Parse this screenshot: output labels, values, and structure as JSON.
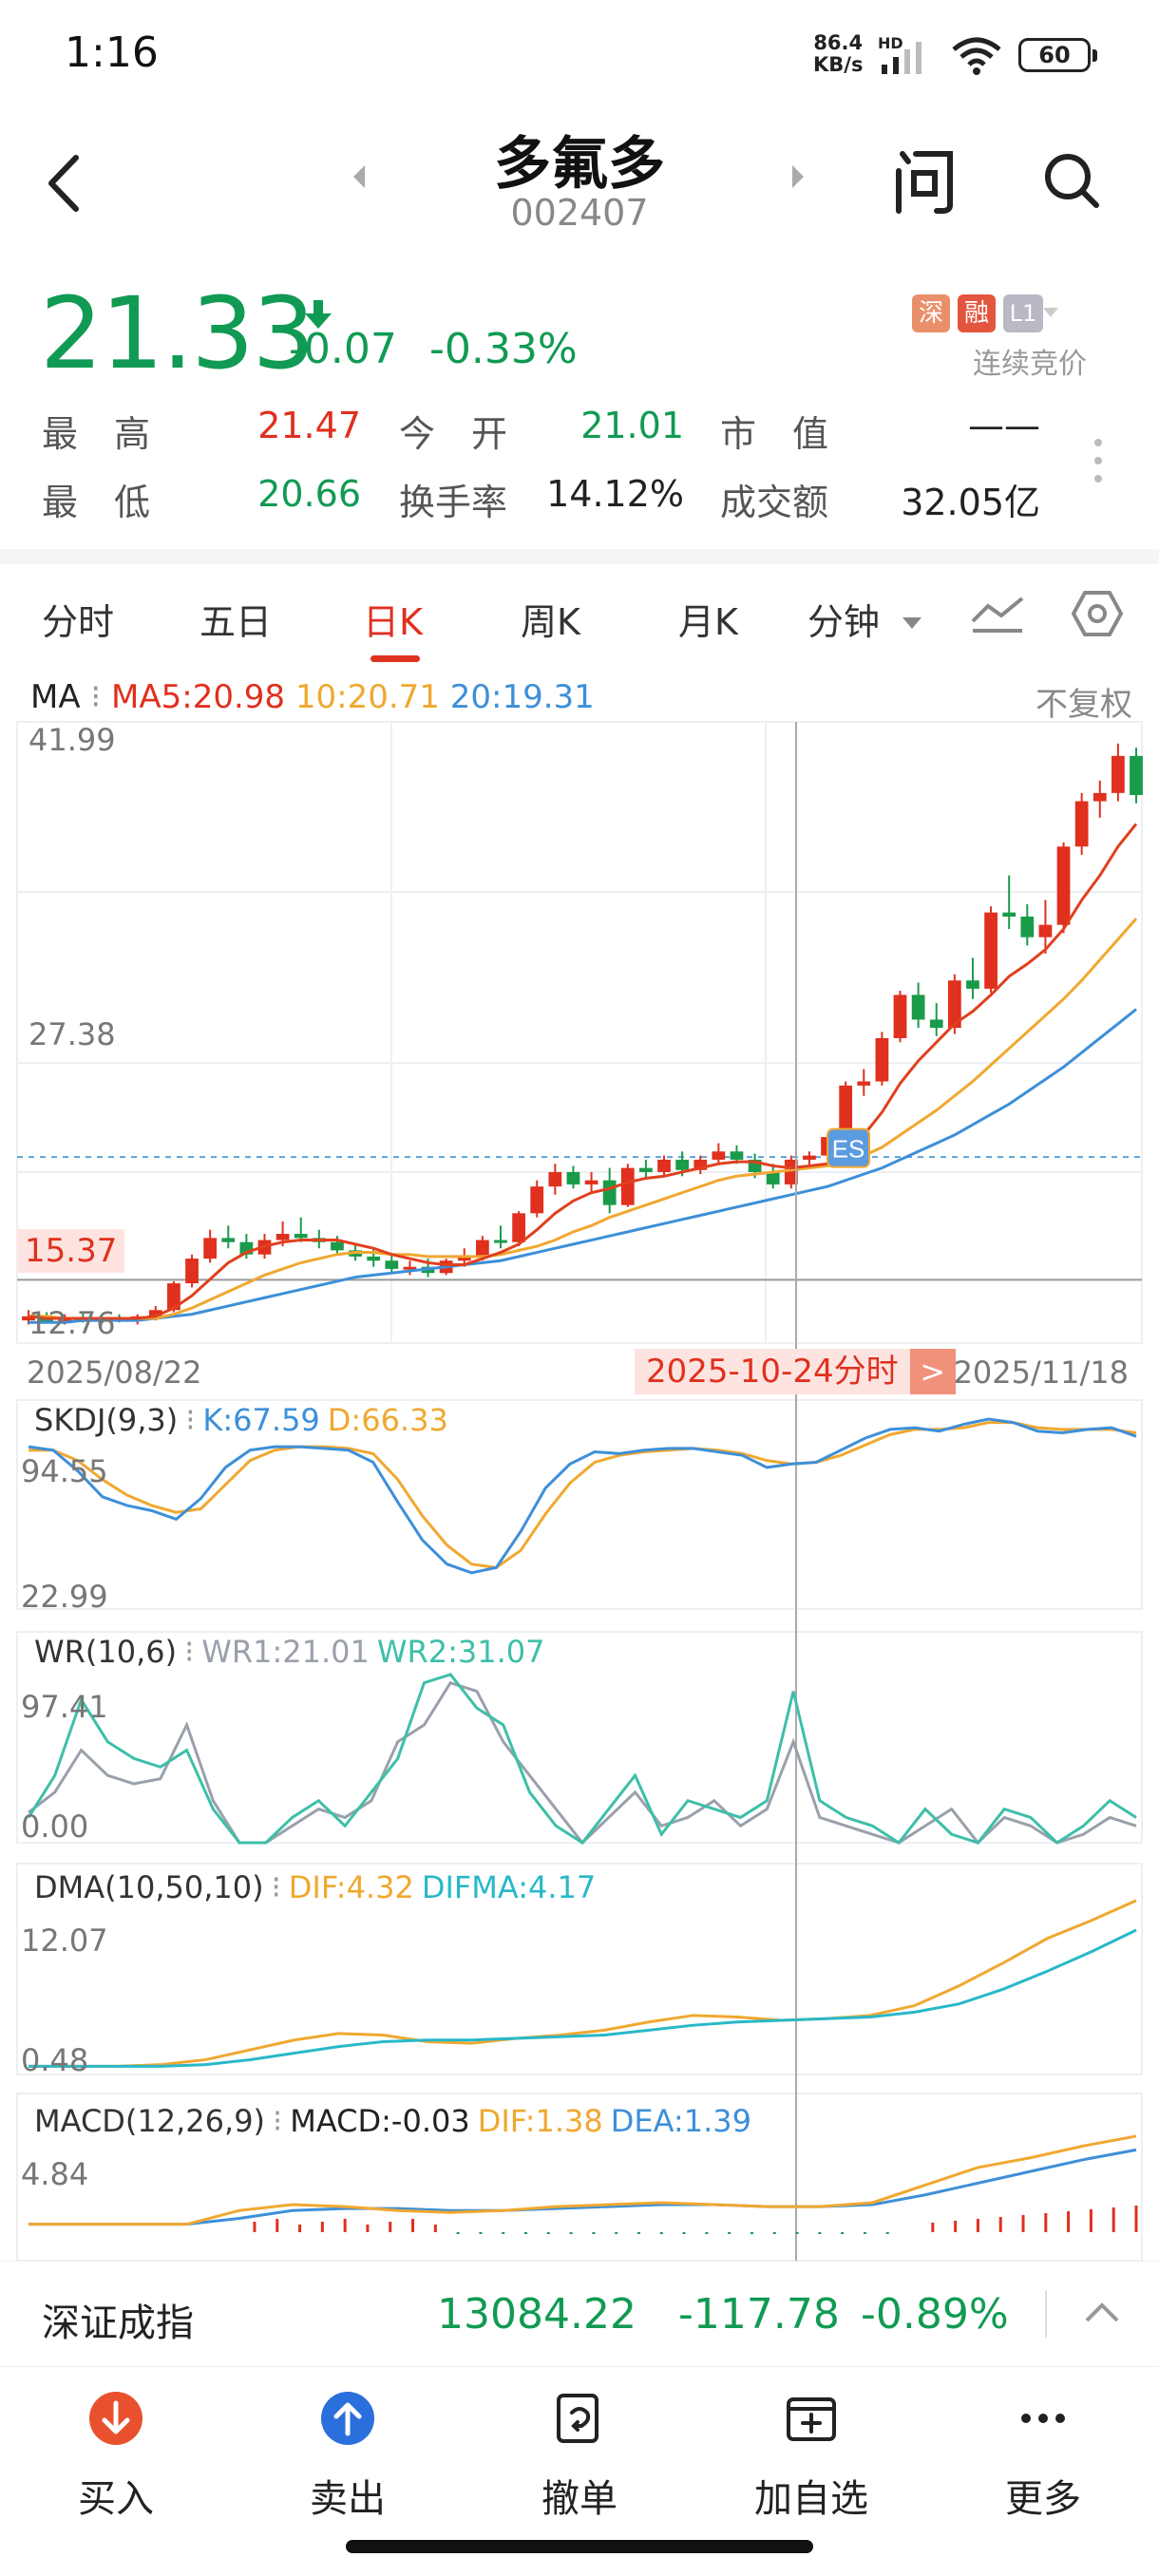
{
  "status_bar": {
    "time": "1:16",
    "net_speed": "86.4",
    "net_unit": "KB/s",
    "net_type": "HD",
    "battery": "60"
  },
  "nav": {
    "title": "多氟多",
    "code": "002407"
  },
  "quote": {
    "price": "21.33",
    "change": "-0.07",
    "change_pct": "-0.33%",
    "badges": [
      "深",
      "融",
      "L1"
    ],
    "trade_mode": "连续竞价",
    "stats": [
      {
        "label": "最　高",
        "value": "21.47",
        "color": "red"
      },
      {
        "label": "今　开",
        "value": "21.01",
        "color": "green"
      },
      {
        "label": "市　值",
        "value": "——",
        "color": "dark"
      },
      {
        "label": "最　低",
        "value": "20.66",
        "color": "green"
      },
      {
        "label": "换手率",
        "value": "14.12%",
        "color": "dark"
      },
      {
        "label": "成交额",
        "value": "32.05亿",
        "color": "dark"
      }
    ]
  },
  "tabs": {
    "items": [
      "分时",
      "五日",
      "日K",
      "周K",
      "月K",
      "分钟"
    ],
    "active": "日K"
  },
  "chart": {
    "ma_label": "MA",
    "ma5": "MA5:20.98",
    "ma10": "10:20.71",
    "ma20": "20:19.31",
    "adjust": "不复权",
    "y_max": "41.99",
    "y_mid": "27.38",
    "y_min": "12.76",
    "cross_price": "15.37",
    "date_start": "2025/08/22",
    "date_end": "2025/11/18",
    "cursor_date": "2025-10-24分时",
    "cursor_arrow": ">",
    "es_badge": "ES",
    "colors": {
      "up": "#e0301e",
      "down": "#1a9b4a",
      "ma5": "#e0401e",
      "ma10": "#f0a830",
      "ma20": "#3d8fd9"
    }
  },
  "chart_data": {
    "type": "candlestick",
    "ylim": [
      12.76,
      41.99
    ],
    "ohlc": [
      [
        13.4,
        13.9,
        13.2,
        13.6
      ],
      [
        13.5,
        13.8,
        13.3,
        13.4
      ],
      [
        13.4,
        13.7,
        13.2,
        13.5
      ],
      [
        13.5,
        13.8,
        13.3,
        13.4
      ],
      [
        13.4,
        13.6,
        13.2,
        13.5
      ],
      [
        13.5,
        13.7,
        13.3,
        13.4
      ],
      [
        13.4,
        13.7,
        13.2,
        13.6
      ],
      [
        13.6,
        14.1,
        13.4,
        13.9
      ],
      [
        13.9,
        15.3,
        13.8,
        15.2
      ],
      [
        15.2,
        16.6,
        15.0,
        16.4
      ],
      [
        16.4,
        17.8,
        16.2,
        17.4
      ],
      [
        17.4,
        18.0,
        16.9,
        17.2
      ],
      [
        17.2,
        17.6,
        16.4,
        16.6
      ],
      [
        16.6,
        17.6,
        16.4,
        17.3
      ],
      [
        17.3,
        18.2,
        17.0,
        17.6
      ],
      [
        17.6,
        18.4,
        17.2,
        17.4
      ],
      [
        17.4,
        17.8,
        16.9,
        17.2
      ],
      [
        17.2,
        17.5,
        16.6,
        16.8
      ],
      [
        16.8,
        17.1,
        16.3,
        16.5
      ],
      [
        16.5,
        16.9,
        16.0,
        16.3
      ],
      [
        16.3,
        16.6,
        15.7,
        15.9
      ],
      [
        15.9,
        16.3,
        15.6,
        16.0
      ],
      [
        16.0,
        16.4,
        15.5,
        15.7
      ],
      [
        15.7,
        16.4,
        15.6,
        16.3
      ],
      [
        16.3,
        16.9,
        16.0,
        16.5
      ],
      [
        16.5,
        17.5,
        16.3,
        17.3
      ],
      [
        17.3,
        18.0,
        16.9,
        17.2
      ],
      [
        17.2,
        18.7,
        17.0,
        18.6
      ],
      [
        18.6,
        20.2,
        18.4,
        19.9
      ],
      [
        19.9,
        21.0,
        19.5,
        20.6
      ],
      [
        20.6,
        20.9,
        19.8,
        20.0
      ],
      [
        20.0,
        20.6,
        19.6,
        20.2
      ],
      [
        20.2,
        20.8,
        18.6,
        19.0
      ],
      [
        19.0,
        21.0,
        18.9,
        20.8
      ],
      [
        20.8,
        21.2,
        20.3,
        20.6
      ],
      [
        20.6,
        21.4,
        20.4,
        21.2
      ],
      [
        21.2,
        21.6,
        20.4,
        20.7
      ],
      [
        20.7,
        21.4,
        20.5,
        21.2
      ],
      [
        21.2,
        22.0,
        21.0,
        21.6
      ],
      [
        21.6,
        21.9,
        21.0,
        21.2
      ],
      [
        21.2,
        21.5,
        20.3,
        20.6
      ],
      [
        20.6,
        21.0,
        19.8,
        20.0
      ],
      [
        20.0,
        21.4,
        19.8,
        21.2
      ],
      [
        21.2,
        21.6,
        20.9,
        21.4
      ],
      [
        21.4,
        22.4,
        21.2,
        22.3
      ],
      [
        22.3,
        25.0,
        22.1,
        24.8
      ],
      [
        24.8,
        25.6,
        24.3,
        25.0
      ],
      [
        25.0,
        27.4,
        24.8,
        27.1
      ],
      [
        27.1,
        29.4,
        26.9,
        29.2
      ],
      [
        29.2,
        29.8,
        27.6,
        28.0
      ],
      [
        28.0,
        28.8,
        27.2,
        27.6
      ],
      [
        27.6,
        30.2,
        27.3,
        29.9
      ],
      [
        29.9,
        31.0,
        29.0,
        29.5
      ],
      [
        29.5,
        33.5,
        29.3,
        33.2
      ],
      [
        33.2,
        35.0,
        32.4,
        33.0
      ],
      [
        33.0,
        33.6,
        31.6,
        32.0
      ],
      [
        32.0,
        33.8,
        31.2,
        32.6
      ],
      [
        32.6,
        36.6,
        32.2,
        36.4
      ],
      [
        36.4,
        39.0,
        36.0,
        38.6
      ],
      [
        38.6,
        39.6,
        37.8,
        39.0
      ],
      [
        39.0,
        41.4,
        38.6,
        40.8
      ],
      [
        40.8,
        41.2,
        38.5,
        38.9
      ]
    ],
    "ma5": [
      13.6,
      13.5,
      13.5,
      13.5,
      13.5,
      13.5,
      13.5,
      13.6,
      14.0,
      14.6,
      15.4,
      16.2,
      16.7,
      17.0,
      17.2,
      17.3,
      17.3,
      17.3,
      17.1,
      16.9,
      16.6,
      16.4,
      16.2,
      16.1,
      16.1,
      16.4,
      16.7,
      17.1,
      17.8,
      18.6,
      19.2,
      19.6,
      19.8,
      20.1,
      20.3,
      20.4,
      20.6,
      20.8,
      21.0,
      21.1,
      21.1,
      20.9,
      20.8,
      20.9,
      21.0,
      21.6,
      22.4,
      23.5,
      24.9,
      26.0,
      26.9,
      27.8,
      28.4,
      29.2,
      30.1,
      30.7,
      31.4,
      32.4,
      33.8,
      35.0,
      36.4,
      37.5
    ],
    "ma10": [
      13.6,
      13.6,
      13.5,
      13.5,
      13.5,
      13.5,
      13.5,
      13.5,
      13.7,
      14.0,
      14.4,
      14.8,
      15.2,
      15.6,
      15.9,
      16.2,
      16.4,
      16.6,
      16.7,
      16.7,
      16.6,
      16.6,
      16.5,
      16.5,
      16.5,
      16.5,
      16.6,
      16.8,
      17.0,
      17.3,
      17.7,
      18.0,
      18.4,
      18.7,
      19.0,
      19.3,
      19.6,
      19.9,
      20.2,
      20.4,
      20.5,
      20.6,
      20.7,
      20.8,
      20.9,
      21.1,
      21.4,
      21.8,
      22.4,
      23.0,
      23.6,
      24.3,
      25.0,
      25.8,
      26.6,
      27.4,
      28.2,
      29.0,
      29.9,
      30.9,
      31.9,
      32.9
    ],
    "ma20": [
      13.3,
      13.3,
      13.3,
      13.4,
      13.4,
      13.4,
      13.4,
      13.5,
      13.6,
      13.7,
      13.9,
      14.1,
      14.3,
      14.5,
      14.7,
      14.9,
      15.1,
      15.3,
      15.5,
      15.6,
      15.7,
      15.8,
      15.9,
      16.0,
      16.1,
      16.2,
      16.3,
      16.5,
      16.7,
      16.9,
      17.1,
      17.3,
      17.5,
      17.7,
      17.9,
      18.1,
      18.3,
      18.5,
      18.7,
      18.9,
      19.1,
      19.3,
      19.5,
      19.7,
      19.9,
      20.2,
      20.5,
      20.8,
      21.2,
      21.6,
      22.0,
      22.4,
      22.9,
      23.4,
      23.9,
      24.5,
      25.1,
      25.7,
      26.4,
      27.1,
      27.8,
      28.5
    ],
    "skdj": {
      "title": "SKDJ(9,3)",
      "k_label": "K:67.59",
      "d_label": "D:66.33",
      "ylim": [
        22.99,
        94.55
      ],
      "y_top": "94.55",
      "y_bot": "22.99",
      "k": [
        94,
        92,
        80,
        65,
        60,
        57,
        52,
        64,
        82,
        92,
        94,
        94,
        93,
        92,
        85,
        62,
        40,
        26,
        21,
        24,
        45,
        70,
        84,
        91,
        90,
        92,
        93,
        93,
        91,
        89,
        82,
        84,
        85,
        92,
        99,
        104,
        105,
        103,
        107,
        110,
        108,
        103,
        102,
        104,
        105,
        100
      ],
      "d": [
        92,
        92,
        86,
        75,
        66,
        60,
        56,
        58,
        72,
        86,
        92,
        94,
        94,
        93,
        90,
        75,
        54,
        37,
        26,
        24,
        34,
        55,
        73,
        85,
        89,
        91,
        92,
        93,
        92,
        90,
        86,
        84,
        85,
        89,
        95,
        101,
        104,
        104,
        105,
        108,
        108,
        105,
        104,
        104,
        104,
        102
      ]
    },
    "wr": {
      "title": "WR(10,6)",
      "wr1_label": "WR1:21.01",
      "wr2_label": "WR2:31.07",
      "ylim": [
        0,
        97.41
      ],
      "y_top": "97.41",
      "y_bot": "0.00",
      "wr1": [
        18,
        30,
        55,
        40,
        35,
        38,
        70,
        25,
        0,
        0,
        10,
        20,
        15,
        25,
        60,
        70,
        95,
        90,
        60,
        40,
        20,
        0,
        15,
        30,
        10,
        15,
        25,
        10,
        20,
        60,
        15,
        10,
        5,
        0,
        10,
        20,
        0,
        15,
        10,
        0,
        5,
        15,
        10
      ],
      "wr2": [
        15,
        40,
        85,
        60,
        50,
        45,
        55,
        20,
        0,
        0,
        15,
        25,
        10,
        30,
        50,
        95,
        100,
        80,
        70,
        30,
        10,
        0,
        20,
        40,
        5,
        25,
        20,
        15,
        25,
        90,
        25,
        15,
        10,
        0,
        20,
        5,
        0,
        20,
        15,
        0,
        10,
        25,
        15
      ]
    },
    "dma": {
      "title": "DMA(10,50,10)",
      "dif_label": "DIF:4.32",
      "difma_label": "DIFMA:4.17",
      "ylim": [
        0.48,
        12.07
      ],
      "y_top": "12.07",
      "y_bot": "0.48",
      "dif": [
        0.5,
        0.5,
        0.5,
        0.6,
        0.9,
        1.5,
        2.1,
        2.5,
        2.4,
        2.0,
        1.9,
        2.2,
        2.4,
        2.7,
        3.2,
        3.6,
        3.5,
        3.3,
        3.4,
        3.6,
        4.2,
        5.4,
        6.8,
        8.3,
        9.4,
        10.6
      ],
      "difma": [
        0.5,
        0.5,
        0.5,
        0.5,
        0.6,
        0.9,
        1.3,
        1.7,
        2.0,
        2.1,
        2.1,
        2.2,
        2.3,
        2.4,
        2.7,
        3.0,
        3.2,
        3.3,
        3.4,
        3.5,
        3.8,
        4.3,
        5.2,
        6.3,
        7.5,
        8.8
      ]
    },
    "macd": {
      "title": "MACD(12,26,9)",
      "macd_label": "MACD:-0.03",
      "dif_label": "DIF:1.38",
      "dea_label": "DEA:1.39",
      "ylim": [
        -0.5,
        4.84
      ],
      "y_top": "4.84",
      "dif": [
        0.1,
        0.1,
        0.1,
        0.1,
        0.8,
        1.1,
        1.0,
        0.8,
        0.7,
        0.8,
        1.0,
        1.1,
        1.2,
        1.1,
        1.0,
        1.0,
        1.2,
        2.1,
        3.0,
        3.5,
        4.1,
        4.6
      ],
      "dea": [
        0.1,
        0.1,
        0.1,
        0.1,
        0.4,
        0.8,
        0.9,
        0.9,
        0.8,
        0.8,
        0.9,
        1.0,
        1.1,
        1.1,
        1.0,
        1.0,
        1.1,
        1.6,
        2.2,
        2.8,
        3.4,
        3.9
      ]
    }
  },
  "index_bar": {
    "name": "深证成指",
    "value": "13084.22",
    "change": "-117.78",
    "change_pct": "-0.89%"
  },
  "actions": [
    {
      "label": "买入",
      "icon": "buy-icon"
    },
    {
      "label": "卖出",
      "icon": "sell-icon"
    },
    {
      "label": "撤单",
      "icon": "cancel-order-icon"
    },
    {
      "label": "加自选",
      "icon": "add-watchlist-icon"
    },
    {
      "label": "更多",
      "icon": "more-icon"
    }
  ]
}
